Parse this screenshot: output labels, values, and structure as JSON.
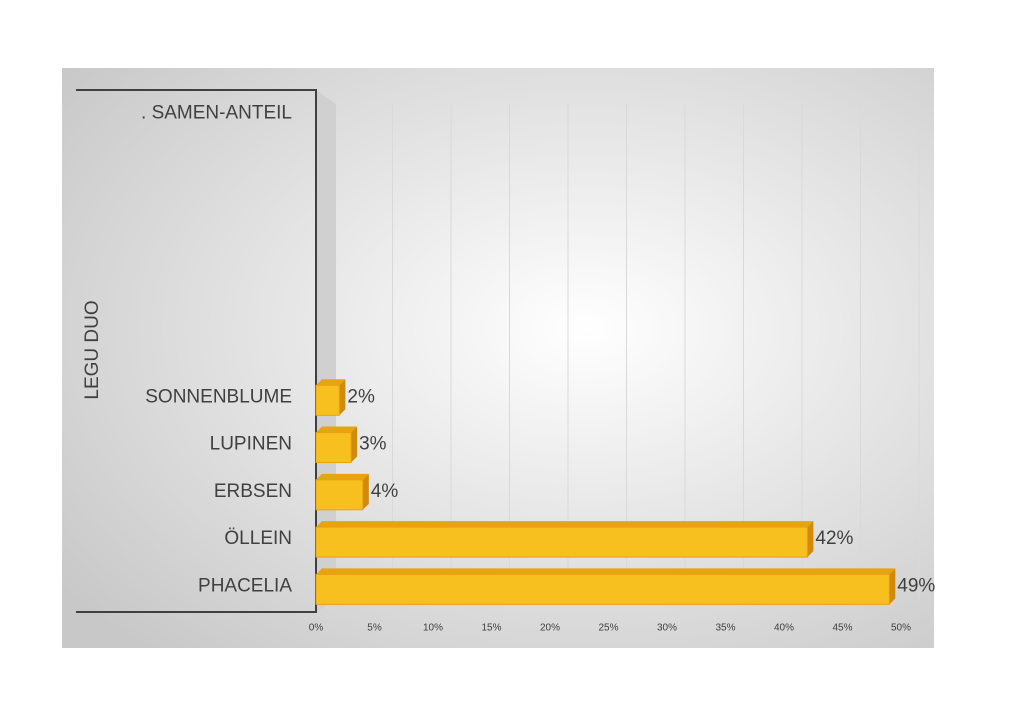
{
  "chart_data": {
    "type": "bar3d",
    "y_axis_label": "LEGU DUO",
    "categories": [
      ". SAMEN-ANTEIL",
      null,
      null,
      null,
      null,
      null,
      "SONNENBLUME",
      "LUPINEN",
      "ERBSEN",
      "ÖLLEIN",
      "PHACELIA"
    ],
    "values": [
      null,
      null,
      null,
      null,
      null,
      null,
      2,
      3,
      4,
      42,
      49
    ],
    "value_labels": [
      null,
      null,
      null,
      null,
      null,
      null,
      "2%",
      "3%",
      "4%",
      "42%",
      "49%"
    ],
    "color": "#f8c01e",
    "xlim": [
      0,
      50
    ],
    "xticks": [
      {
        "value": 0,
        "label": "0%"
      },
      {
        "value": 5,
        "label": "5%"
      },
      {
        "value": 10,
        "label": "10%"
      },
      {
        "value": 15,
        "label": "15%"
      },
      {
        "value": 20,
        "label": "20%"
      },
      {
        "value": 25,
        "label": "25%"
      },
      {
        "value": 30,
        "label": "30%"
      },
      {
        "value": 35,
        "label": "35%"
      },
      {
        "value": 40,
        "label": "40%"
      },
      {
        "value": 45,
        "label": "45%"
      },
      {
        "value": 50,
        "label": "50%"
      }
    ],
    "grid": true
  }
}
